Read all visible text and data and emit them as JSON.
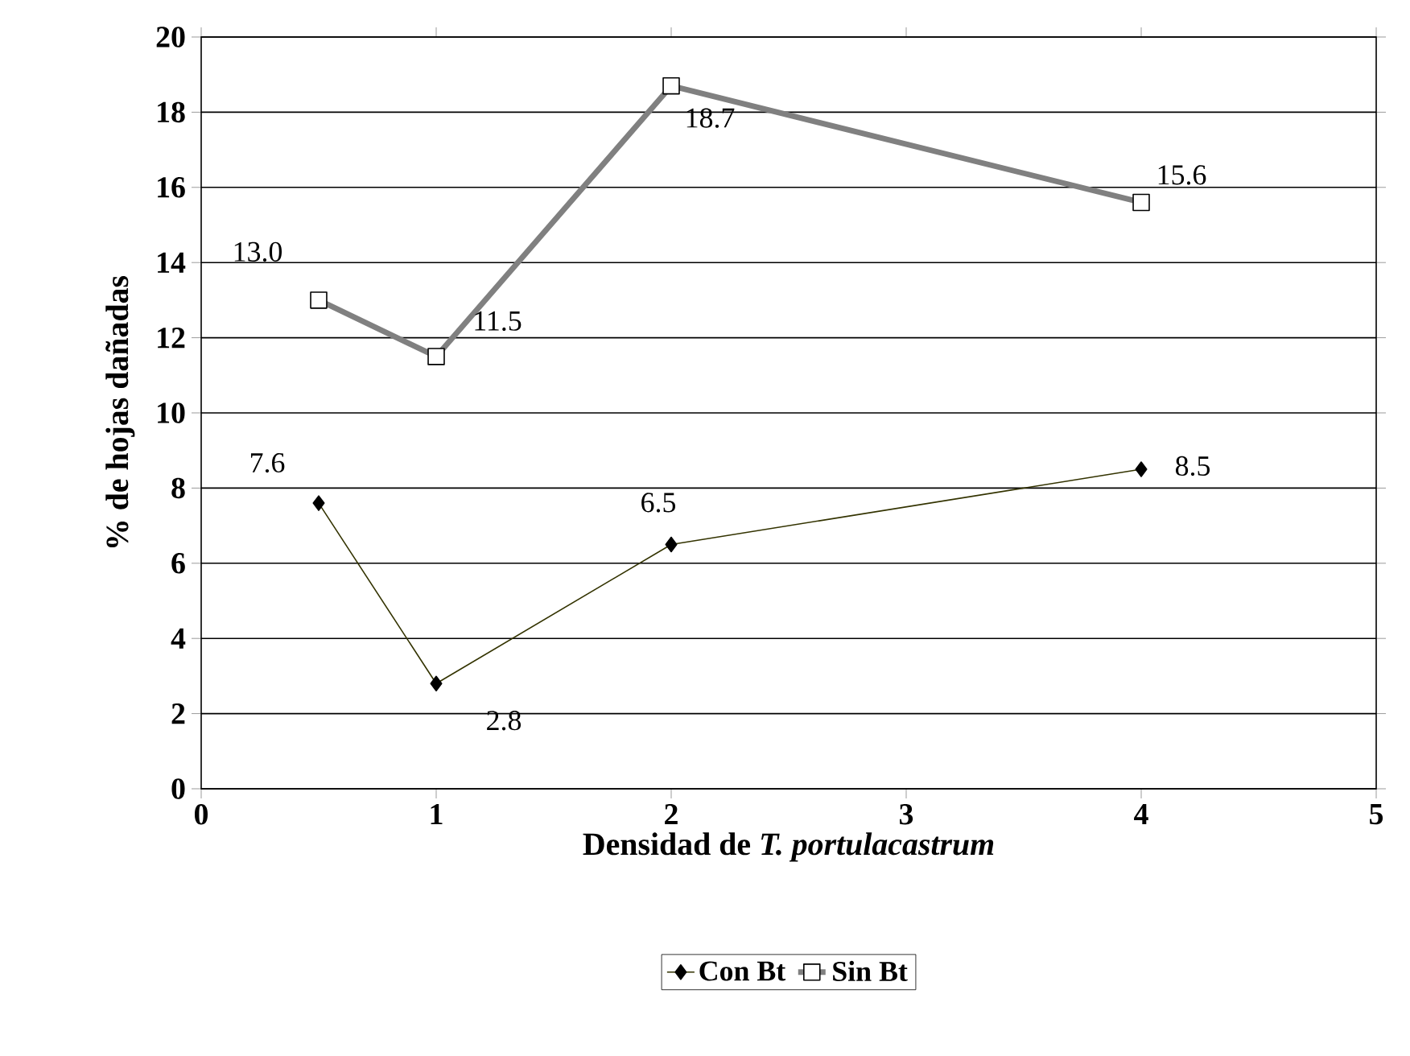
{
  "chart_data": {
    "type": "line",
    "xlabel": "Densidad de *T. portulacastrum*",
    "ylabel": "% de hojas dañadas",
    "xlim": [
      0,
      5
    ],
    "xticks": [
      0,
      1,
      2,
      3,
      4,
      5
    ],
    "ylim": [
      0,
      20
    ],
    "yticks": [
      0,
      2,
      4,
      6,
      8,
      10,
      12,
      14,
      16,
      18,
      20
    ],
    "x": [
      0.5,
      1,
      2,
      4
    ],
    "grid": "y",
    "legend": "bottom",
    "line_style": "solid",
    "series": [
      {
        "name": "Con Bt",
        "color": "#333300",
        "marker": "diamond",
        "values": [
          7.6,
          2.8,
          6.5,
          8.5
        ],
        "value_labels": [
          "7.6",
          "2.8",
          "6.5",
          "8.5"
        ]
      },
      {
        "name": "Sin Bt",
        "color": "#808080",
        "marker": "square",
        "values": [
          13.0,
          11.5,
          18.7,
          15.6
        ],
        "value_labels": [
          "13.0",
          "11.5",
          "18.7",
          "15.6"
        ]
      }
    ]
  }
}
